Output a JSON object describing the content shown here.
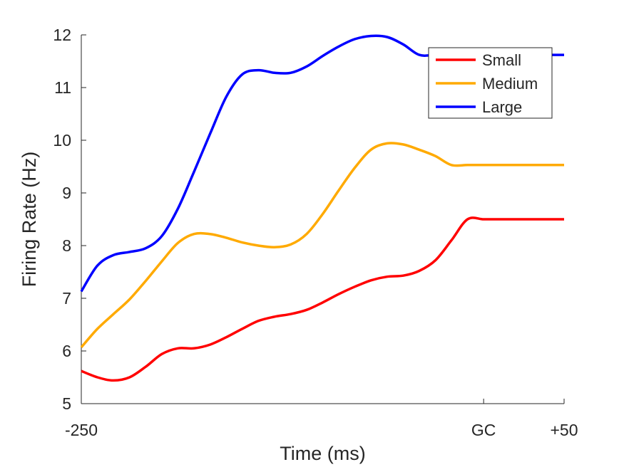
{
  "chart_data": {
    "type": "line",
    "title": "",
    "xlabel": "Time (ms)",
    "ylabel": "Firing Rate (Hz)",
    "xlim": [
      -250,
      50
    ],
    "ylim": [
      5,
      12
    ],
    "x_ticks": [
      {
        "value": -250,
        "label": "-250"
      },
      {
        "value": 0,
        "label": "GC"
      },
      {
        "value": 50,
        "label": "+50"
      }
    ],
    "y_ticks": [
      5,
      6,
      7,
      8,
      9,
      10,
      11,
      12
    ],
    "grid": false,
    "legend": {
      "position": "top-right"
    },
    "x": [
      -250,
      -240,
      -230,
      -220,
      -210,
      -200,
      -190,
      -180,
      -170,
      -160,
      -150,
      -140,
      -130,
      -120,
      -110,
      -100,
      -90,
      -80,
      -70,
      -60,
      -50,
      -40,
      -30,
      -20,
      -10,
      0,
      10,
      20,
      30,
      40,
      50
    ],
    "series": [
      {
        "name": "Small",
        "color": "#ff0000",
        "values": [
          5.62,
          5.5,
          5.44,
          5.5,
          5.7,
          5.94,
          6.05,
          6.05,
          6.12,
          6.26,
          6.42,
          6.57,
          6.65,
          6.7,
          6.78,
          6.92,
          7.08,
          7.22,
          7.34,
          7.41,
          7.43,
          7.52,
          7.72,
          8.1,
          8.5,
          8.5,
          8.5,
          8.5,
          8.5,
          8.5,
          8.5
        ]
      },
      {
        "name": "Medium",
        "color": "#ffaa00",
        "values": [
          6.07,
          6.42,
          6.7,
          6.98,
          7.33,
          7.7,
          8.05,
          8.22,
          8.22,
          8.15,
          8.06,
          8.0,
          7.97,
          8.02,
          8.22,
          8.6,
          9.05,
          9.48,
          9.82,
          9.94,
          9.92,
          9.82,
          9.7,
          9.53,
          9.53,
          9.53,
          9.53,
          9.53,
          9.53,
          9.53,
          9.53
        ]
      },
      {
        "name": "Large",
        "color": "#0000ff",
        "values": [
          7.13,
          7.62,
          7.82,
          7.88,
          7.95,
          8.18,
          8.7,
          9.4,
          10.12,
          10.82,
          11.25,
          11.33,
          11.28,
          11.28,
          11.4,
          11.6,
          11.78,
          11.92,
          11.98,
          11.96,
          11.82,
          11.62,
          11.62,
          11.62,
          11.62,
          11.62,
          11.62,
          11.62,
          11.62,
          11.62,
          11.62
        ]
      }
    ]
  }
}
